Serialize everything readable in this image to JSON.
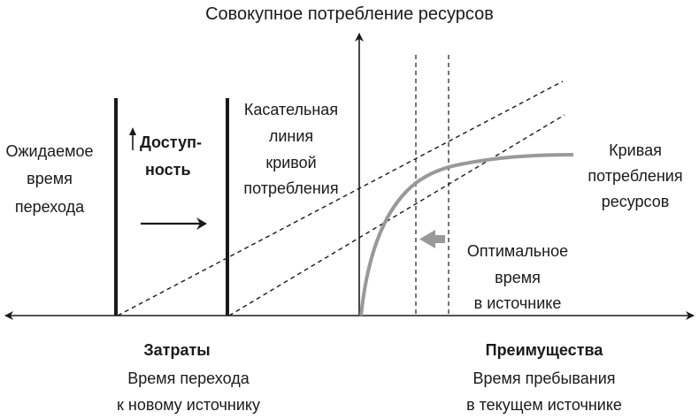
{
  "title": "Совокупное потребление ресурсов",
  "left_label": [
    "Ожидаемое",
    "время",
    "перехода"
  ],
  "availability_label": [
    "Доступ-",
    "ность"
  ],
  "tangent_label": [
    "Касательная",
    "линия",
    "кривой",
    "потребления"
  ],
  "curve_label": [
    "Кривая",
    "потребления",
    "ресурсов"
  ],
  "optimal_label": [
    "Оптимальное",
    "время",
    "в источнике"
  ],
  "costs": {
    "heading": "Затраты",
    "lines": [
      "Время перехода",
      "к новому источнику"
    ]
  },
  "benefits": {
    "heading": "Преимущества",
    "lines": [
      "Время пребывания",
      "в текущем источнике"
    ]
  },
  "colors": {
    "ink": "#1a1a1a",
    "curve": "#999999"
  }
}
